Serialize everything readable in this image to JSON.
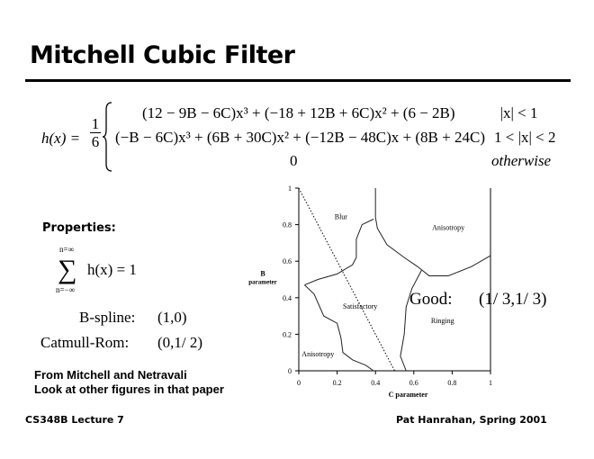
{
  "title": "Mitchell Cubic Filter",
  "equation": {
    "lhs": "h(x) =",
    "frac_num": "1",
    "frac_den": "6",
    "cases": [
      {
        "expr": "(12 − 9B − 6C)x³ + (−18 + 12B + 6C)x² + (6 − 2B)",
        "cond": "|x| < 1"
      },
      {
        "expr": "(−B − 6C)x³ + (6B + 30C)x² + (−12B − 48C)x + (8B + 24C)",
        "cond": "1 < |x| < 2"
      },
      {
        "expr": "0",
        "cond": "otherwise"
      }
    ]
  },
  "properties": {
    "heading": "Properties:",
    "sum_top": "n=∞",
    "sum_bottom": "n=−∞",
    "sum_expr": "h(x) = 1",
    "bspline_label": "B-spline:",
    "bspline_value": "(1,0)",
    "catmull_label": "Catmull-Rom:",
    "catmull_value": "(0,1/ 2)"
  },
  "good": {
    "label": "Good:",
    "value": "(1/ 3,1/ 3)"
  },
  "source_line1": "From Mitchell and Netravali",
  "source_line2": "Look at other figures in that paper",
  "footer_left": "CS348B Lecture 7",
  "footer_right": "Pat Hanrahan, Spring 2001",
  "chart_data": {
    "type": "region-diagram",
    "xlabel": "C parameter",
    "ylabel": "B parameter",
    "xlim": [
      0,
      1
    ],
    "ylim": [
      0,
      1
    ],
    "xticks": [
      "0",
      "0.2",
      "0.4",
      "0.6",
      "0.8",
      "1"
    ],
    "yticks": [
      "0",
      "0.2",
      "0.4",
      "0.6",
      "0.8",
      "1"
    ],
    "regions": [
      {
        "label": "Blur",
        "at": [
          0.22,
          0.83
        ]
      },
      {
        "label": "Anisotropy",
        "at": [
          0.78,
          0.77
        ]
      },
      {
        "label": "Satisfactory",
        "at": [
          0.32,
          0.34
        ]
      },
      {
        "label": "Ringing",
        "at": [
          0.75,
          0.26
        ]
      },
      {
        "label": "Anisotropy",
        "at": [
          0.1,
          0.08
        ]
      }
    ],
    "dotted_line": [
      [
        0,
        1
      ],
      [
        0.5,
        0
      ]
    ]
  }
}
